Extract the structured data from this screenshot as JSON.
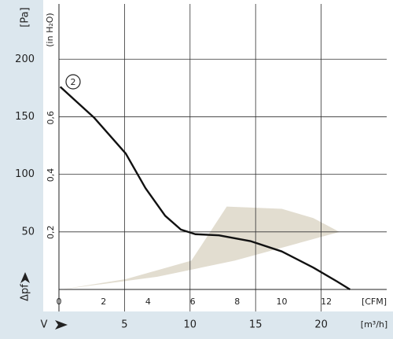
{
  "chart_data": {
    "type": "line",
    "ylabel": "[Pa]",
    "y2label": "(in H₂O)",
    "xlabel": "[m³/h]",
    "x2label": "[CFM]",
    "ylabel_bottom": "Δpf",
    "xlabel_left": "V",
    "annotation": "2",
    "xlim": [
      0,
      25
    ],
    "xticks": [
      5,
      10,
      15,
      20
    ],
    "x2lim": [
      0,
      14.71
    ],
    "x2ticks": [
      0,
      2,
      4,
      6,
      8,
      10,
      12
    ],
    "ylim": [
      0,
      248
    ],
    "yticks": [
      50,
      100,
      150,
      200
    ],
    "y2lim": [
      0,
      0.998
    ],
    "y2ticks": [
      {
        "value": 0.2,
        "label": "0,2"
      },
      {
        "value": 0.4,
        "label": "0,4"
      },
      {
        "value": 0.6,
        "label": "0,6"
      }
    ],
    "grid": true,
    "series": [
      {
        "color": "#111111",
        "x": [
          0.1,
          2.7,
          5.1,
          6.6,
          8.1,
          9.3,
          10.4,
          12.2,
          14.6,
          17.0,
          19.4,
          21.2,
          22.2
        ],
        "values": [
          176,
          149,
          118,
          88,
          64,
          52,
          48,
          47,
          42,
          33,
          19,
          7,
          0
        ]
      }
    ],
    "region": {
      "color": "#e2ddd0",
      "x": [
        0.2,
        5.1,
        10.1,
        12.8,
        17.0,
        19.4,
        21.4,
        18.2,
        13.4,
        7.5
      ],
      "values": [
        0,
        9,
        25,
        72,
        70,
        62,
        50,
        40,
        25,
        11
      ]
    }
  }
}
